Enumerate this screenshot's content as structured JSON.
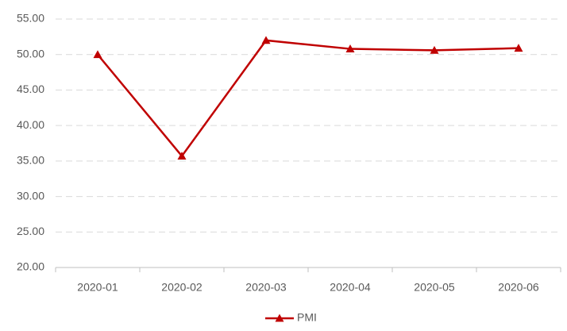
{
  "chart_data": {
    "type": "line",
    "categories": [
      "2020-01",
      "2020-02",
      "2020-03",
      "2020-04",
      "2020-05",
      "2020-06"
    ],
    "series": [
      {
        "name": "PMI",
        "color": "#c00000",
        "values": [
          50.0,
          35.7,
          52.0,
          50.8,
          50.6,
          50.9
        ]
      }
    ],
    "ylim": [
      20,
      55
    ],
    "yticks": [
      {
        "value": 20,
        "label": "20.00"
      },
      {
        "value": 25,
        "label": "25.00"
      },
      {
        "value": 30,
        "label": "30.00"
      },
      {
        "value": 35,
        "label": "35.00"
      },
      {
        "value": 40,
        "label": "40.00"
      },
      {
        "value": 45,
        "label": "45.00"
      },
      {
        "value": 50,
        "label": "50.00"
      },
      {
        "value": 55,
        "label": "55.00"
      }
    ],
    "grid": true,
    "legend": "bottom"
  }
}
